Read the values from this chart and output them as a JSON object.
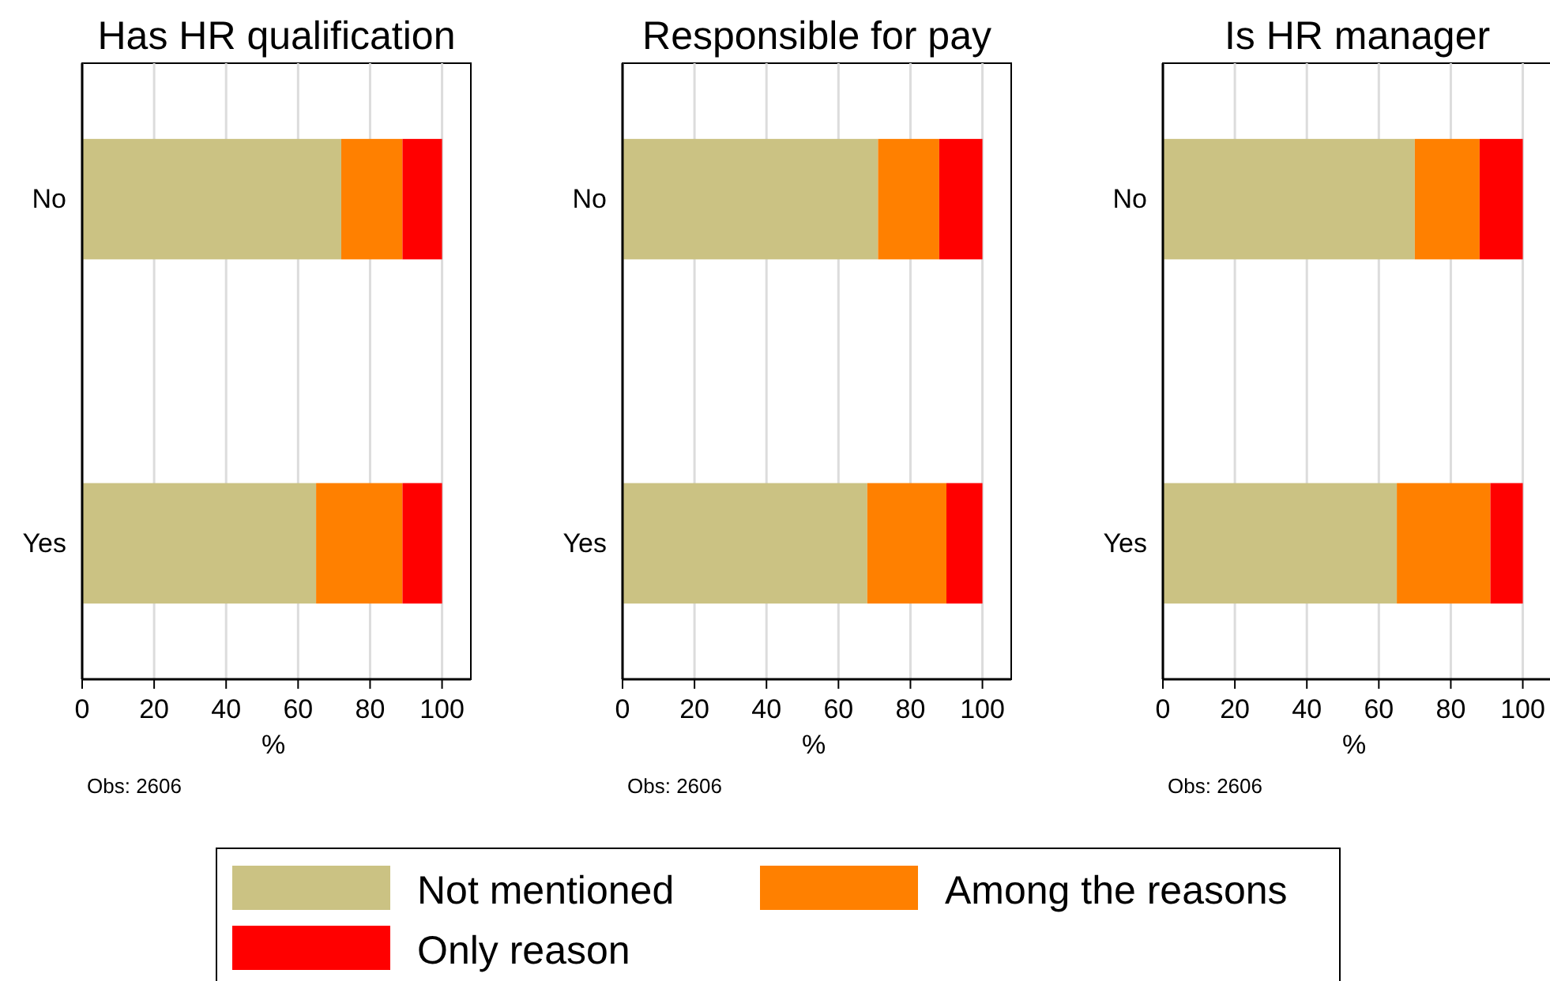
{
  "chart_data": [
    {
      "type": "bar",
      "orientation": "horizontal",
      "stacked": true,
      "title": "Has HR qualification",
      "xlabel": "%",
      "categories": [
        "No",
        "Yes"
      ],
      "xlim": [
        0,
        108
      ],
      "xticks": [
        0,
        20,
        40,
        60,
        80,
        100
      ],
      "grid": "x",
      "legend": "bottom",
      "annotations": [
        "Obs: 2606"
      ],
      "series": [
        {
          "name": "Not mentioned",
          "color": "#cbc283",
          "values": [
            72,
            65
          ]
        },
        {
          "name": "Among the reasons",
          "color": "#ff8000",
          "values": [
            17,
            24
          ]
        },
        {
          "name": "Only reason",
          "color": "#ff0000",
          "values": [
            11,
            11
          ]
        }
      ]
    },
    {
      "type": "bar",
      "orientation": "horizontal",
      "stacked": true,
      "title": "Responsible for pay",
      "xlabel": "%",
      "categories": [
        "No",
        "Yes"
      ],
      "xlim": [
        0,
        108
      ],
      "xticks": [
        0,
        20,
        40,
        60,
        80,
        100
      ],
      "grid": "x",
      "annotations": [
        "Obs: 2606"
      ],
      "series": [
        {
          "color": "#cbc283",
          "values": [
            71,
            68
          ]
        },
        {
          "color": "#ff8000",
          "values": [
            17,
            22
          ]
        },
        {
          "color": "#ff0000",
          "values": [
            12,
            10
          ]
        }
      ]
    },
    {
      "type": "bar",
      "orientation": "horizontal",
      "stacked": true,
      "title": "Is HR manager",
      "xlabel": "%",
      "categories": [
        "No",
        "Yes"
      ],
      "xlim": [
        0,
        108
      ],
      "xticks": [
        0,
        20,
        40,
        60,
        80,
        100
      ],
      "grid": "x",
      "annotations": [
        "Obs: 2606"
      ],
      "series": [
        {
          "color": "#cbc283",
          "values": [
            70,
            65
          ]
        },
        {
          "color": "#ff8000",
          "values": [
            18,
            26
          ]
        },
        {
          "color": "#ff0000",
          "values": [
            12,
            9
          ]
        }
      ]
    }
  ]
}
